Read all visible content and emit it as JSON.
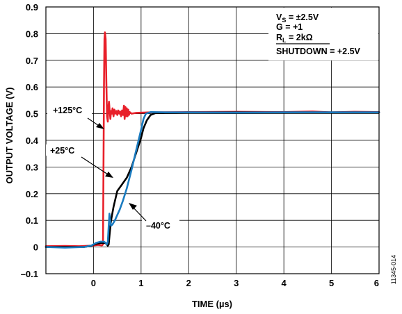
{
  "chart_data": {
    "type": "line",
    "title": "",
    "xlabel": "TIME (µs)",
    "ylabel": "OUTPUT VOLTAGE (V)",
    "xlim": [
      -1,
      6
    ],
    "ylim": [
      -0.1,
      0.9
    ],
    "xticks": [
      0,
      1,
      2,
      3,
      4,
      5,
      6
    ],
    "xtick_labels": [
      "0",
      "1",
      "2",
      "3",
      "4",
      "5",
      "6"
    ],
    "yticks": [
      -0.1,
      0,
      0.1,
      0.2,
      0.3,
      0.4,
      0.5,
      0.6,
      0.7,
      0.8,
      0.9
    ],
    "ytick_labels": [
      "–0.1",
      "0",
      "0.1",
      "0.2",
      "0.3",
      "0.4",
      "0.5",
      "0.6",
      "0.7",
      "0.8",
      "0.9"
    ],
    "grid": true,
    "legend": "none",
    "conditions": {
      "vs": {
        "main": "V",
        "sub": "S",
        "rest": " = ±2.5V"
      },
      "gain": "G = +1",
      "rl": {
        "main": "R",
        "sub": "L",
        "rest": " = 2kΩ"
      },
      "shutdown": {
        "name": "SHUTDOWN",
        "rest": " = +2.5V"
      }
    },
    "annotations": [
      {
        "text": "+125°C",
        "series": "+125°C"
      },
      {
        "text": "+25°C",
        "series": "+25°C"
      },
      {
        "text": "–40°C",
        "series": "–40°C"
      }
    ],
    "figure_id": "11345-014",
    "series": [
      {
        "id": "t125",
        "color": "#e8202a",
        "points": [
          [
            -1.0,
            0.003
          ],
          [
            -0.6,
            0.004
          ],
          [
            -0.3,
            0.003
          ],
          [
            -0.05,
            0.005
          ],
          [
            0.1,
            0.008
          ],
          [
            0.18,
            0.006
          ],
          [
            0.2,
            0.01
          ],
          [
            0.21,
            0.3
          ],
          [
            0.22,
            0.6
          ],
          [
            0.23,
            0.78
          ],
          [
            0.24,
            0.805
          ],
          [
            0.255,
            0.78
          ],
          [
            0.27,
            0.62
          ],
          [
            0.285,
            0.49
          ],
          [
            0.3,
            0.47
          ],
          [
            0.31,
            0.52
          ],
          [
            0.325,
            0.545
          ],
          [
            0.34,
            0.51
          ],
          [
            0.355,
            0.48
          ],
          [
            0.37,
            0.51
          ],
          [
            0.385,
            0.5
          ],
          [
            0.4,
            0.52
          ],
          [
            0.42,
            0.49
          ],
          [
            0.44,
            0.515
          ],
          [
            0.46,
            0.5
          ],
          [
            0.48,
            0.51
          ],
          [
            0.5,
            0.495
          ],
          [
            0.52,
            0.512
          ],
          [
            0.54,
            0.5
          ],
          [
            0.56,
            0.508
          ],
          [
            0.58,
            0.49
          ],
          [
            0.6,
            0.512
          ],
          [
            0.62,
            0.495
          ],
          [
            0.64,
            0.53
          ],
          [
            0.655,
            0.48
          ],
          [
            0.67,
            0.525
          ],
          [
            0.685,
            0.49
          ],
          [
            0.7,
            0.52
          ],
          [
            0.715,
            0.49
          ],
          [
            0.73,
            0.515
          ],
          [
            0.745,
            0.495
          ],
          [
            0.76,
            0.506
          ],
          [
            0.8,
            0.5
          ],
          [
            0.9,
            0.503
          ],
          [
            1.2,
            0.505
          ],
          [
            2.0,
            0.506
          ],
          [
            3.0,
            0.507
          ],
          [
            4.0,
            0.506
          ],
          [
            4.6,
            0.508
          ],
          [
            5.0,
            0.505
          ],
          [
            5.5,
            0.507
          ],
          [
            6.0,
            0.506
          ]
        ]
      },
      {
        "id": "t25",
        "color": "#000000",
        "points": [
          [
            -1.0,
            0.0
          ],
          [
            -0.5,
            0.0
          ],
          [
            -0.2,
            0.0
          ],
          [
            -0.05,
            0.005
          ],
          [
            0.05,
            0.012
          ],
          [
            0.15,
            0.015
          ],
          [
            0.25,
            0.015
          ],
          [
            0.28,
            0.01
          ],
          [
            0.3,
            0.005
          ],
          [
            0.32,
            0.01
          ],
          [
            0.34,
            0.05
          ],
          [
            0.37,
            0.1
          ],
          [
            0.42,
            0.15
          ],
          [
            0.5,
            0.21
          ],
          [
            0.6,
            0.235
          ],
          [
            0.7,
            0.26
          ],
          [
            0.8,
            0.3
          ],
          [
            0.9,
            0.355
          ],
          [
            1.0,
            0.41
          ],
          [
            1.05,
            0.445
          ],
          [
            1.12,
            0.475
          ],
          [
            1.2,
            0.495
          ],
          [
            1.3,
            0.502
          ],
          [
            1.5,
            0.504
          ],
          [
            2.0,
            0.505
          ],
          [
            3.0,
            0.505
          ],
          [
            4.0,
            0.505
          ],
          [
            5.0,
            0.505
          ],
          [
            6.0,
            0.505
          ]
        ]
      },
      {
        "id": "tm40",
        "color": "#1a7bc0",
        "points": [
          [
            -1.0,
            0.0
          ],
          [
            -0.6,
            -0.002
          ],
          [
            -0.2,
            0.0
          ],
          [
            -0.05,
            0.005
          ],
          [
            0.05,
            0.015
          ],
          [
            0.15,
            0.02
          ],
          [
            0.22,
            0.02
          ],
          [
            0.26,
            0.015
          ],
          [
            0.28,
            0.01
          ],
          [
            0.3,
            0.018
          ],
          [
            0.32,
            0.08
          ],
          [
            0.335,
            0.125
          ],
          [
            0.35,
            0.1
          ],
          [
            0.37,
            0.08
          ],
          [
            0.4,
            0.085
          ],
          [
            0.45,
            0.1
          ],
          [
            0.5,
            0.12
          ],
          [
            0.55,
            0.14
          ],
          [
            0.62,
            0.175
          ],
          [
            0.7,
            0.22
          ],
          [
            0.8,
            0.29
          ],
          [
            0.9,
            0.365
          ],
          [
            1.0,
            0.44
          ],
          [
            1.05,
            0.48
          ],
          [
            1.1,
            0.5
          ],
          [
            1.2,
            0.506
          ],
          [
            1.5,
            0.505
          ],
          [
            2.0,
            0.505
          ],
          [
            3.0,
            0.504
          ],
          [
            4.0,
            0.505
          ],
          [
            5.0,
            0.505
          ],
          [
            6.0,
            0.505
          ]
        ]
      }
    ]
  }
}
